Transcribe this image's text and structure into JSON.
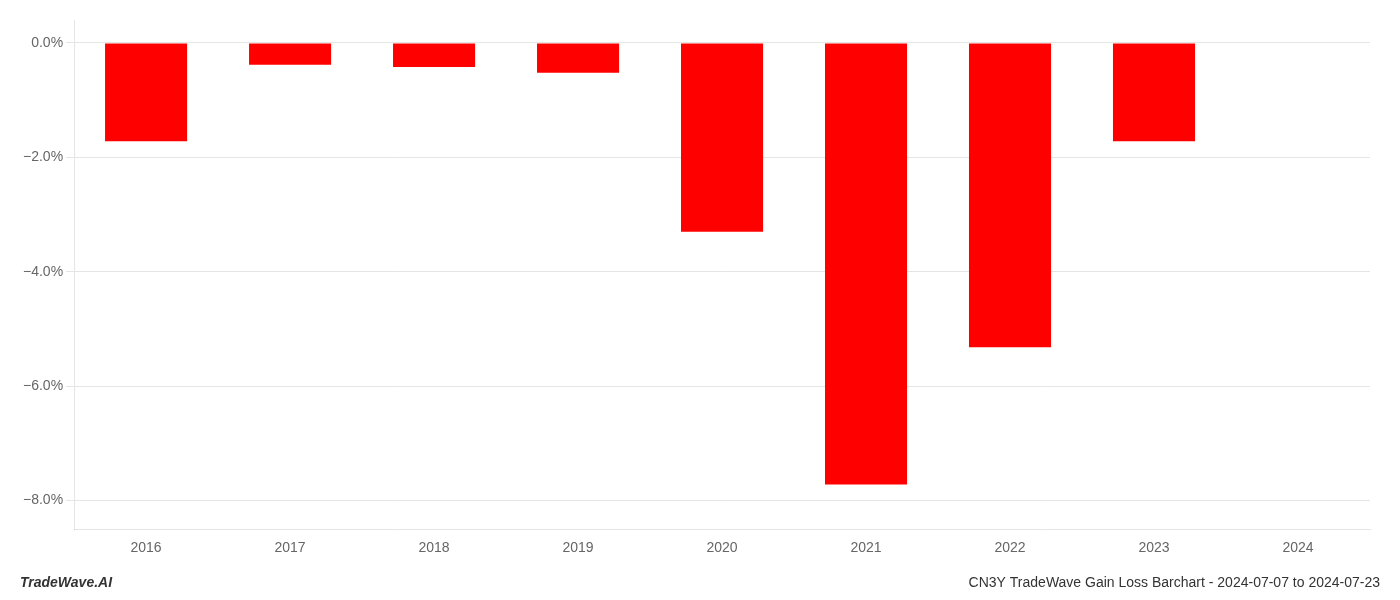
{
  "chart_data": {
    "type": "bar",
    "title": "CN3Y TradeWave Gain Loss Barchart - 2024-07-07 to 2024-07-23",
    "annotations": [
      "TradeWave.AI"
    ],
    "categories": [
      "2016",
      "2017",
      "2018",
      "2019",
      "2020",
      "2021",
      "2022",
      "2023",
      "2024"
    ],
    "values": [
      -1.72,
      -0.38,
      -0.42,
      -0.52,
      -3.3,
      -7.72,
      -5.32,
      -1.72,
      0.0
    ],
    "color": "#ff0000",
    "ylim": [
      -8.5,
      0.4
    ],
    "yticks": [
      {
        "value": 0.0,
        "label": "0.0%"
      },
      {
        "value": -2.0,
        "label": "−2.0%"
      },
      {
        "value": -4.0,
        "label": "−4.0%"
      },
      {
        "value": -6.0,
        "label": "−6.0%"
      },
      {
        "value": -8.0,
        "label": "−8.0%"
      }
    ],
    "grid": true
  }
}
